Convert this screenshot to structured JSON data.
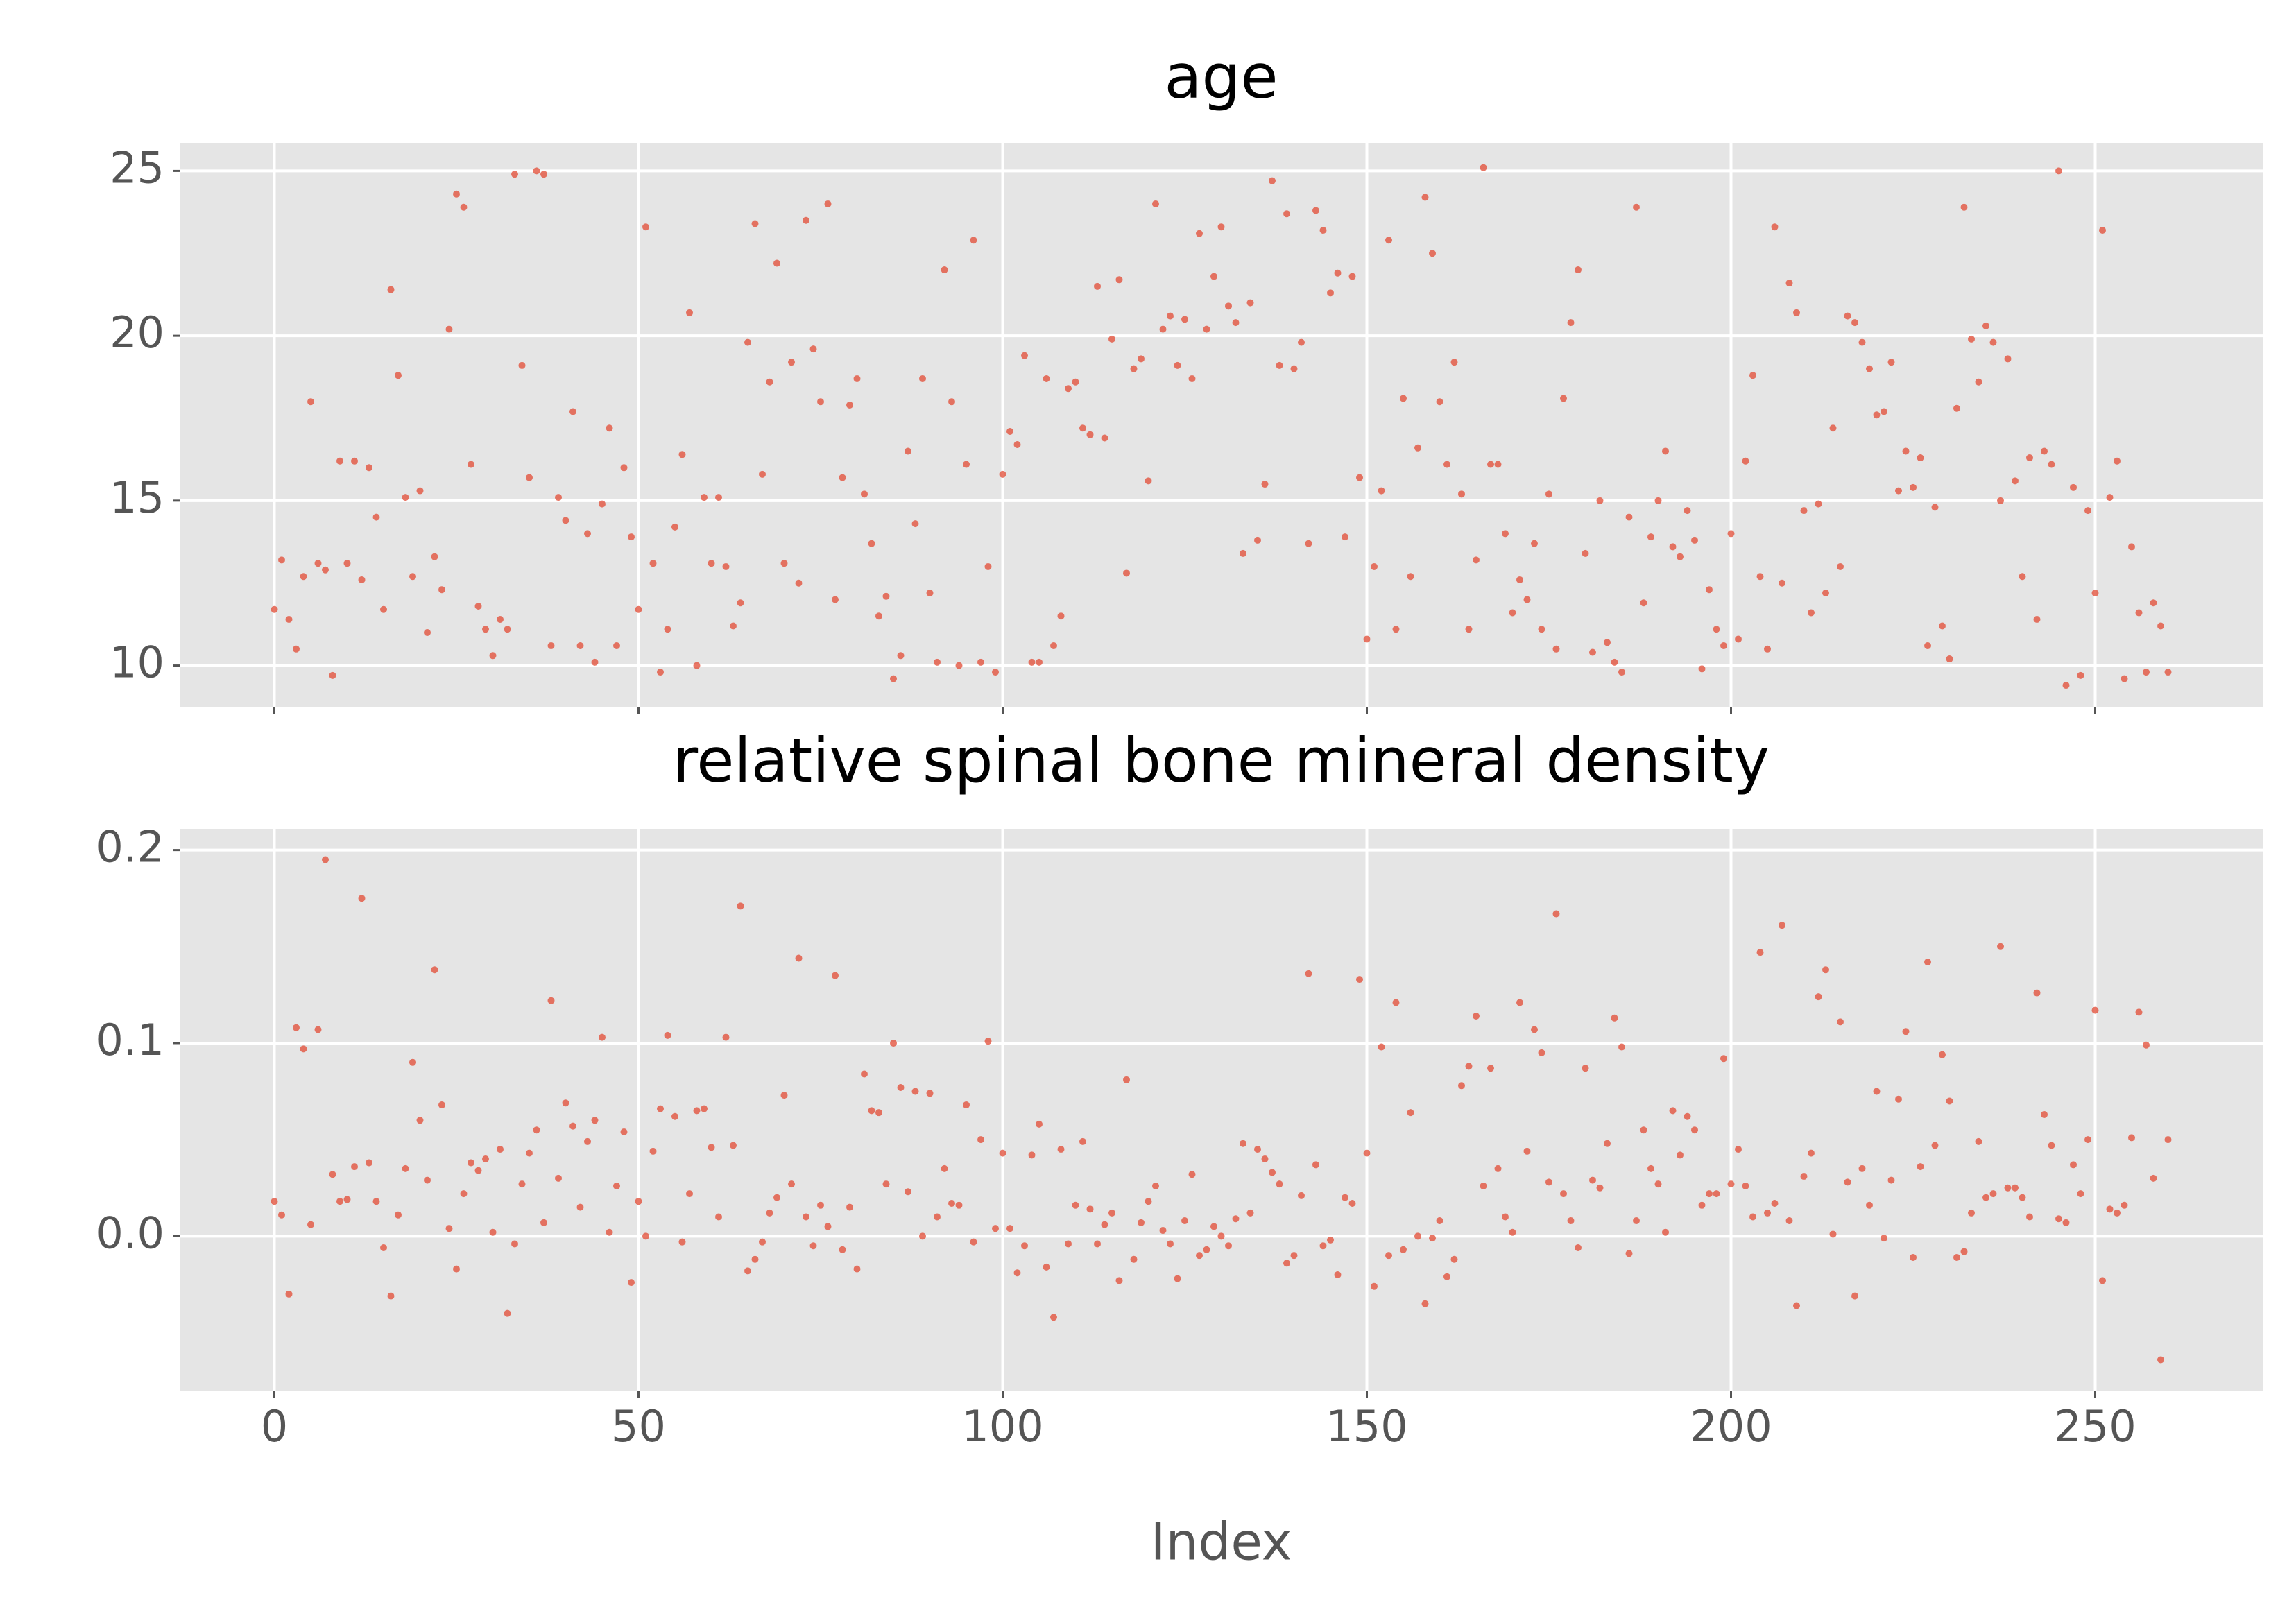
{
  "chart_data": [
    {
      "type": "scatter",
      "title": "age",
      "color": "#e24a33",
      "grid": true,
      "xlim": [
        -13,
        273
      ],
      "ylim": [
        8.75,
        25.85
      ],
      "xticks": [
        0,
        50,
        100,
        150,
        200,
        250
      ],
      "yticks": [
        10,
        15,
        20,
        25
      ],
      "x": [
        0,
        1,
        2,
        3,
        4,
        5,
        6,
        7,
        8,
        9,
        10,
        11,
        12,
        13,
        14,
        15,
        16,
        17,
        18,
        19,
        20,
        21,
        22,
        23,
        24,
        25,
        26,
        27,
        28,
        29,
        30,
        31,
        32,
        33,
        34,
        35,
        36,
        37,
        38,
        39,
        40,
        41,
        42,
        43,
        44,
        45,
        46,
        47,
        48,
        49,
        50,
        51,
        52,
        53,
        54,
        55,
        56,
        57,
        58,
        59,
        60,
        61,
        62,
        63,
        64,
        65,
        66,
        67,
        68,
        69,
        70,
        71,
        72,
        73,
        74,
        75,
        76,
        77,
        78,
        79,
        80,
        81,
        82,
        83,
        84,
        85,
        86,
        87,
        88,
        89,
        90,
        91,
        92,
        93,
        94,
        95,
        96,
        97,
        98,
        99,
        100,
        101,
        102,
        103,
        104,
        105,
        106,
        107,
        108,
        109,
        110,
        111,
        112,
        113,
        114,
        115,
        116,
        117,
        118,
        119,
        120,
        121,
        122,
        123,
        124,
        125,
        126,
        127,
        128,
        129,
        130,
        131,
        132,
        133,
        134,
        135,
        136,
        137,
        138,
        139,
        140,
        141,
        142,
        143,
        144,
        145,
        146,
        147,
        148,
        149,
        150,
        151,
        152,
        153,
        154,
        155,
        156,
        157,
        158,
        159,
        160,
        161,
        162,
        163,
        164,
        165,
        166,
        167,
        168,
        169,
        170,
        171,
        172,
        173,
        174,
        175,
        176,
        177,
        178,
        179,
        180,
        181,
        182,
        183,
        184,
        185,
        186,
        187,
        188,
        189,
        190,
        191,
        192,
        193,
        194,
        195,
        196,
        197,
        198,
        199,
        200,
        201,
        202,
        203,
        204,
        205,
        206,
        207,
        208,
        209,
        210,
        211,
        212,
        213,
        214,
        215,
        216,
        217,
        218,
        219,
        220,
        221,
        222,
        223,
        224,
        225,
        226,
        227,
        228,
        229,
        230,
        231,
        232,
        233,
        234,
        235,
        236,
        237,
        238,
        239,
        240,
        241,
        242,
        243,
        244,
        245,
        246,
        247,
        248,
        249,
        250,
        251,
        252,
        253,
        254,
        255,
        256,
        257,
        258,
        259,
        260
      ],
      "values": [
        11.7,
        13.2,
        11.4,
        10.5,
        12.7,
        18,
        13.1,
        12.9,
        9.7,
        16.2,
        13.1,
        16.2,
        12.6,
        16,
        14.5,
        11.7,
        21.4,
        18.8,
        15.1,
        12.7,
        15.3,
        11,
        13.3,
        12.3,
        20.2,
        24.3,
        23.9,
        16.1,
        11.8,
        11.1,
        10.3,
        11.4,
        11.1,
        24.9,
        19.1,
        15.7,
        25,
        24.9,
        10.6,
        15.1,
        14.4,
        17.7,
        10.6,
        14,
        10.1,
        14.9,
        17.2,
        10.6,
        16,
        13.9,
        11.7,
        23.3,
        13.1,
        9.8,
        11.1,
        14.2,
        16.4,
        20.7,
        10,
        15.1,
        13.1,
        15.1,
        13,
        11.2,
        11.9,
        19.8,
        23.4,
        15.8,
        18.6,
        22.2,
        13.1,
        19.2,
        12.5,
        23.5,
        19.6,
        18,
        24,
        12,
        15.7,
        17.9,
        18.7,
        15.2,
        13.7,
        11.5,
        12.1,
        9.6,
        10.3,
        16.5,
        14.3,
        18.7,
        12.2,
        10.1,
        22,
        18,
        10,
        16.1,
        22.9,
        10.1,
        13,
        9.8,
        15.8,
        17.1,
        16.7,
        19.4,
        10.1,
        10.1,
        18.7,
        10.6,
        11.5,
        18.4,
        18.6,
        17.2,
        17,
        21.5,
        16.9,
        19.9,
        21.7,
        12.8,
        19,
        19.3,
        15.6,
        24,
        20.2,
        20.6,
        19.1,
        20.5,
        18.7,
        23.1,
        20.2,
        21.8,
        23.3,
        20.9,
        20.4,
        13.4,
        21,
        13.8,
        15.5,
        24.7,
        19.1,
        23.7,
        19,
        19.8,
        13.7,
        23.8,
        23.2,
        21.3,
        21.9,
        13.9,
        21.8,
        15.7,
        10.8,
        13,
        15.3,
        22.9,
        11.1,
        18.1,
        12.7,
        16.6,
        24.2,
        22.5,
        18,
        16.1,
        19.2,
        15.2,
        11.1,
        13.2,
        25.1,
        16.1,
        16.1,
        14,
        11.6,
        12.6,
        12,
        13.7,
        11.1,
        15.2,
        10.5,
        18.1,
        20.4,
        22,
        13.4,
        10.4,
        15,
        10.7,
        10.1,
        9.8,
        14.5,
        23.9,
        11.9,
        13.9,
        15,
        16.5,
        13.6,
        13.3,
        14.7,
        13.8,
        9.9,
        12.3,
        11.1,
        10.6,
        14,
        10.8,
        16.2,
        18.8,
        12.7,
        10.5,
        23.3,
        12.5,
        21.6,
        20.7,
        14.7,
        11.6,
        14.9,
        12.2,
        17.2,
        13,
        20.6,
        20.4,
        19.8,
        19,
        17.6,
        17.7,
        19.2,
        15.3,
        16.5,
        15.4,
        16.3,
        10.6,
        14.8,
        11.2,
        10.2,
        17.8,
        23.9,
        19.9,
        18.6,
        20.3,
        19.8,
        15,
        19.3,
        15.6,
        12.7,
        16.3,
        11.4,
        16.5,
        16.1,
        25,
        9.4,
        15.4,
        9.7,
        14.7,
        12.2,
        23.2,
        15.1,
        16.2,
        9.6,
        13.6,
        11.6,
        9.8,
        11.9,
        11.2,
        9.8
      ]
    },
    {
      "type": "scatter",
      "title": "relative spinal bone mineral density",
      "xlabel": "Index",
      "color": "#e24a33",
      "grid": true,
      "xlim": [
        -13,
        273
      ],
      "ylim": [
        -0.08,
        0.211
      ],
      "xticks": [
        0,
        50,
        100,
        150,
        200,
        250
      ],
      "yticks": [
        0.0,
        0.1,
        0.2
      ],
      "x": [
        0,
        1,
        2,
        3,
        4,
        5,
        6,
        7,
        8,
        9,
        10,
        11,
        12,
        13,
        14,
        15,
        16,
        17,
        18,
        19,
        20,
        21,
        22,
        23,
        24,
        25,
        26,
        27,
        28,
        29,
        30,
        31,
        32,
        33,
        34,
        35,
        36,
        37,
        38,
        39,
        40,
        41,
        42,
        43,
        44,
        45,
        46,
        47,
        48,
        49,
        50,
        51,
        52,
        53,
        54,
        55,
        56,
        57,
        58,
        59,
        60,
        61,
        62,
        63,
        64,
        65,
        66,
        67,
        68,
        69,
        70,
        71,
        72,
        73,
        74,
        75,
        76,
        77,
        78,
        79,
        80,
        81,
        82,
        83,
        84,
        85,
        86,
        87,
        88,
        89,
        90,
        91,
        92,
        93,
        94,
        95,
        96,
        97,
        98,
        99,
        100,
        101,
        102,
        103,
        104,
        105,
        106,
        107,
        108,
        109,
        110,
        111,
        112,
        113,
        114,
        115,
        116,
        117,
        118,
        119,
        120,
        121,
        122,
        123,
        124,
        125,
        126,
        127,
        128,
        129,
        130,
        131,
        132,
        133,
        134,
        135,
        136,
        137,
        138,
        139,
        140,
        141,
        142,
        143,
        144,
        145,
        146,
        147,
        148,
        149,
        150,
        151,
        152,
        153,
        154,
        155,
        156,
        157,
        158,
        159,
        160,
        161,
        162,
        163,
        164,
        165,
        166,
        167,
        168,
        169,
        170,
        171,
        172,
        173,
        174,
        175,
        176,
        177,
        178,
        179,
        180,
        181,
        182,
        183,
        184,
        185,
        186,
        187,
        188,
        189,
        190,
        191,
        192,
        193,
        194,
        195,
        196,
        197,
        198,
        199,
        200,
        201,
        202,
        203,
        204,
        205,
        206,
        207,
        208,
        209,
        210,
        211,
        212,
        213,
        214,
        215,
        216,
        217,
        218,
        219,
        220,
        221,
        222,
        223,
        224,
        225,
        226,
        227,
        228,
        229,
        230,
        231,
        232,
        233,
        234,
        235,
        236,
        237,
        238,
        239,
        240,
        241,
        242,
        243,
        244,
        245,
        246,
        247,
        248,
        249,
        250,
        251,
        252,
        253,
        254,
        255,
        256,
        257,
        258,
        259,
        260
      ],
      "values": [
        0.018,
        0.011,
        -0.03,
        0.108,
        0.097,
        0.006,
        0.107,
        0.195,
        0.032,
        0.018,
        0.019,
        0.036,
        0.175,
        0.038,
        0.018,
        -0.006,
        -0.031,
        0.011,
        0.035,
        0.09,
        0.06,
        0.029,
        0.138,
        0.068,
        0.004,
        -0.017,
        0.022,
        0.038,
        0.034,
        0.04,
        0.002,
        0.045,
        -0.04,
        -0.004,
        0.027,
        0.043,
        0.055,
        0.007,
        0.122,
        0.03,
        0.069,
        0.057,
        0.015,
        0.049,
        0.06,
        0.103,
        0.002,
        0.026,
        0.054,
        -0.024,
        0.018,
        0.0,
        0.044,
        0.066,
        0.104,
        0.062,
        -0.003,
        0.022,
        0.065,
        0.066,
        0.046,
        0.01,
        0.103,
        0.047,
        0.171,
        -0.018,
        -0.012,
        -0.003,
        0.012,
        0.02,
        0.073,
        0.027,
        0.144,
        0.01,
        -0.005,
        0.016,
        0.005,
        0.135,
        -0.007,
        0.015,
        -0.017,
        0.084,
        0.065,
        0.064,
        0.027,
        0.1,
        0.077,
        0.023,
        0.075,
        0.0,
        0.074,
        0.01,
        0.035,
        0.017,
        0.016,
        0.068,
        -0.003,
        0.05,
        0.101,
        0.004,
        0.043,
        0.004,
        -0.019,
        -0.005,
        0.042,
        0.058,
        -0.016,
        -0.042,
        0.045,
        -0.004,
        0.016,
        0.049,
        0.014,
        -0.004,
        0.006,
        0.012,
        -0.023,
        0.081,
        -0.012,
        0.007,
        0.018,
        0.026,
        0.003,
        -0.004,
        -0.022,
        0.008,
        0.032,
        -0.01,
        -0.007,
        0.005,
        0.0,
        -0.005,
        0.009,
        0.048,
        0.012,
        0.045,
        0.04,
        0.033,
        0.027,
        -0.014,
        -0.01,
        0.021,
        0.136,
        0.037,
        -0.005,
        -0.002,
        -0.02,
        0.02,
        0.017,
        0.133,
        0.043,
        -0.026,
        0.098,
        -0.01,
        0.121,
        -0.007,
        0.064,
        0.0,
        -0.035,
        -0.001,
        0.008,
        -0.021,
        -0.012,
        0.078,
        0.088,
        0.114,
        0.026,
        0.087,
        0.035,
        0.01,
        0.002,
        0.121,
        0.044,
        0.107,
        0.095,
        0.028,
        0.167,
        0.022,
        0.008,
        -0.006,
        0.087,
        0.029,
        0.025,
        0.048,
        0.113,
        0.098,
        -0.009,
        0.008,
        0.055,
        0.035,
        0.027,
        0.002,
        0.065,
        0.042,
        0.062,
        0.055,
        0.016,
        0.022,
        0.022,
        0.092,
        0.027,
        0.045,
        0.026,
        0.01,
        0.147,
        0.012,
        0.017,
        0.161,
        0.008,
        -0.036,
        0.031,
        0.043,
        0.124,
        0.138,
        0.001,
        0.111,
        0.028,
        -0.031,
        0.035,
        0.016,
        0.075,
        -0.001,
        0.029,
        0.071,
        0.106,
        -0.011,
        0.036,
        0.142,
        0.047,
        0.094,
        0.07,
        -0.011,
        -0.008,
        0.012,
        0.049,
        0.02,
        0.022,
        0.15,
        0.025,
        0.025,
        0.02,
        0.01,
        0.126,
        0.063,
        0.047,
        0.009,
        0.007,
        0.037,
        0.022,
        0.05,
        0.117,
        -0.023,
        0.014,
        0.012,
        0.016,
        0.051,
        0.116,
        0.099,
        0.03,
        -0.064,
        0.05
      ]
    }
  ]
}
